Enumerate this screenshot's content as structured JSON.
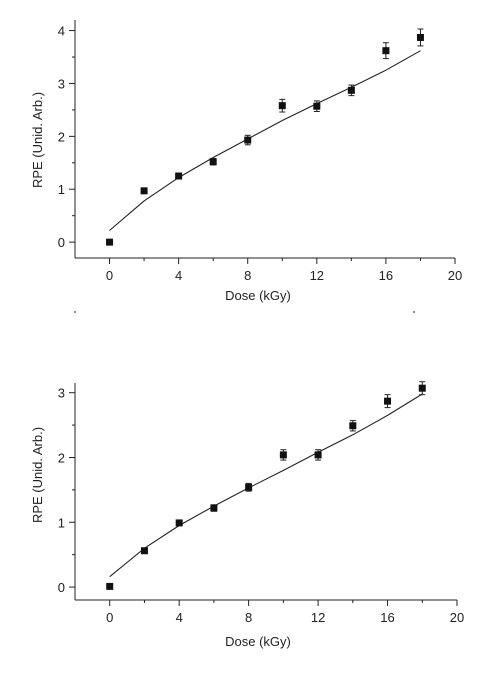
{
  "chart_data": [
    {
      "type": "scatter",
      "title": "",
      "xlabel": "Dose (kGy)",
      "ylabel": "RPE (Unid. Arb.)",
      "xlim": [
        -2,
        20
      ],
      "ylim": [
        -0.3,
        4.2
      ],
      "xticks": [
        0,
        4,
        8,
        12,
        16,
        20
      ],
      "yticks": [
        0,
        1,
        2,
        3,
        4
      ],
      "grid": false,
      "series": [
        {
          "kind": "points",
          "x": [
            0,
            2,
            4,
            6,
            8,
            10,
            12,
            14,
            16,
            18
          ],
          "y": [
            0.0,
            0.97,
            1.25,
            1.52,
            1.93,
            2.58,
            2.57,
            2.87,
            3.62,
            3.87
          ],
          "err": [
            0.03,
            0.04,
            0.05,
            0.06,
            0.09,
            0.12,
            0.1,
            0.1,
            0.15,
            0.16
          ]
        },
        {
          "kind": "fit",
          "x": [
            0,
            2,
            4,
            6,
            8,
            10,
            12,
            14,
            16,
            18
          ],
          "y": [
            0.22,
            0.78,
            1.22,
            1.6,
            1.95,
            2.3,
            2.62,
            2.93,
            3.25,
            3.62
          ]
        }
      ]
    },
    {
      "type": "scatter",
      "title": "",
      "xlabel": "Dose (kGy)",
      "ylabel": "RPE (Unid. Arb.)",
      "xlim": [
        -2,
        20
      ],
      "ylim": [
        -0.2,
        3.15
      ],
      "xticks": [
        0,
        4,
        8,
        12,
        16,
        20
      ],
      "yticks": [
        0,
        1,
        2,
        3
      ],
      "grid": false,
      "series": [
        {
          "kind": "points",
          "x": [
            0,
            2,
            4,
            6,
            8,
            10,
            12,
            14,
            16,
            18
          ],
          "y": [
            0.01,
            0.56,
            0.99,
            1.22,
            1.54,
            2.04,
            2.04,
            2.49,
            2.87,
            3.07
          ],
          "err": [
            0.02,
            0.03,
            0.04,
            0.05,
            0.06,
            0.08,
            0.08,
            0.08,
            0.1,
            0.1
          ]
        },
        {
          "kind": "fit",
          "x": [
            0,
            2,
            4,
            6,
            8,
            10,
            12,
            14,
            16,
            18
          ],
          "y": [
            0.16,
            0.6,
            0.95,
            1.25,
            1.53,
            1.8,
            2.08,
            2.35,
            2.65,
            2.98
          ]
        }
      ]
    }
  ]
}
